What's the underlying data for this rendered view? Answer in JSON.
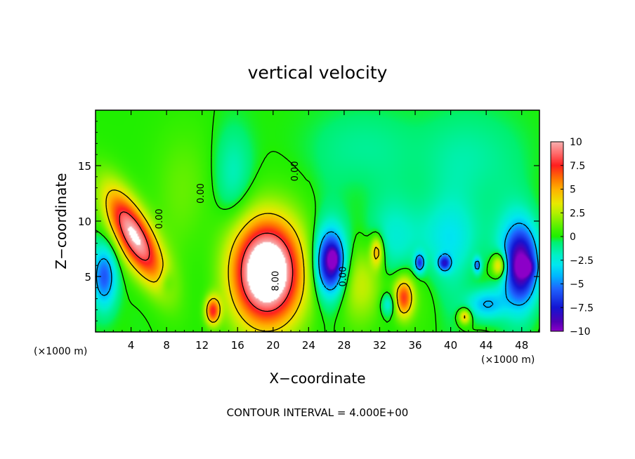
{
  "chart_data": {
    "type": "heatmap",
    "title": "vertical velocity",
    "xlabel": "X−coordinate",
    "ylabel": "Z−coordinate",
    "x_unit_left": "(×1000 m)",
    "x_unit_right": "(×1000 m)",
    "xlim": [
      0,
      50
    ],
    "ylim": [
      0,
      20
    ],
    "x_ticks": [
      "4",
      "8",
      "12",
      "16",
      "20",
      "24",
      "28",
      "32",
      "36",
      "40",
      "44",
      "48"
    ],
    "x_tick_values": [
      4,
      8,
      12,
      16,
      20,
      24,
      28,
      32,
      36,
      40,
      44,
      48
    ],
    "y_ticks": [
      "5",
      "10",
      "15"
    ],
    "y_tick_values": [
      5,
      10,
      15
    ],
    "footer": "CONTOUR INTERVAL = 4.000E+00",
    "colorbar": {
      "range": [
        -10,
        10
      ],
      "labels": [
        "10",
        "7.5",
        "5",
        "2.5",
        "0",
        "−2.5",
        "−5",
        "−7.5",
        "−10"
      ],
      "label_values": [
        10,
        7.5,
        5,
        2.5,
        0,
        -2.5,
        -5,
        -7.5,
        -10
      ],
      "stops": [
        {
          "value": 10,
          "color": "#f6b0b0"
        },
        {
          "value": 8.75,
          "color": "#ff6a6a"
        },
        {
          "value": 7.5,
          "color": "#ff1e1e"
        },
        {
          "value": 6,
          "color": "#ff7a00"
        },
        {
          "value": 5,
          "color": "#ffb000"
        },
        {
          "value": 3.5,
          "color": "#e8e800"
        },
        {
          "value": 2.5,
          "color": "#b4f000"
        },
        {
          "value": 0.6,
          "color": "#3cf000"
        },
        {
          "value": 0,
          "color": "#20ef00"
        },
        {
          "value": -0.6,
          "color": "#00f070"
        },
        {
          "value": -2,
          "color": "#00f0c8"
        },
        {
          "value": -3,
          "color": "#00e6f0"
        },
        {
          "value": -4.2,
          "color": "#00b4ff"
        },
        {
          "value": -5.5,
          "color": "#1e64ff"
        },
        {
          "value": -7.5,
          "color": "#1414d2"
        },
        {
          "value": -9,
          "color": "#5000b4"
        },
        {
          "value": -10,
          "color": "#8c00c8"
        }
      ]
    },
    "contour_labels": [
      {
        "text": "0.00",
        "x": 7.5,
        "y": 10.2
      },
      {
        "text": "0.00",
        "x": 12.2,
        "y": 12.5
      },
      {
        "text": "0.00",
        "x": 22.8,
        "y": 14.5
      },
      {
        "text": "8.00",
        "x": 20.6,
        "y": 4.6
      },
      {
        "text": "0.00",
        "x": 28.2,
        "y": 5.0
      }
    ],
    "features": [
      {
        "x": 4.4,
        "z": 8.6,
        "sx": 1.6,
        "sz": 3.0,
        "tilt": 0.55,
        "amp": 10.5
      },
      {
        "x": 19.3,
        "z": 5.4,
        "sx": 2.7,
        "sz": 3.4,
        "tilt": 0.0,
        "amp": 14.0
      },
      {
        "x": 13.2,
        "z": 1.9,
        "sx": 0.6,
        "sz": 0.9,
        "tilt": 0.0,
        "amp": 7.0
      },
      {
        "x": 31.7,
        "z": 7.3,
        "sx": 0.5,
        "sz": 1.0,
        "tilt": 0.0,
        "amp": 5.0
      },
      {
        "x": 34.7,
        "z": 3.1,
        "sx": 0.8,
        "sz": 1.3,
        "tilt": 0.0,
        "amp": 7.0
      },
      {
        "x": 41.6,
        "z": 1.4,
        "sx": 0.5,
        "sz": 0.5,
        "tilt": 0.0,
        "amp": 5.0
      },
      {
        "x": 45.5,
        "z": 6.0,
        "sx": 0.6,
        "sz": 0.8,
        "tilt": 0.0,
        "amp": 6.0
      },
      {
        "x": 10.0,
        "z": 13.0,
        "sx": 2.5,
        "sz": 4.0,
        "tilt": 0.0,
        "amp": 1.2
      },
      {
        "x": 30.0,
        "z": 4.5,
        "sx": 2.5,
        "sz": 2.5,
        "tilt": 0.0,
        "amp": 2.5
      },
      {
        "x": 26.5,
        "z": 6.2,
        "sx": 1.2,
        "sz": 2.0,
        "tilt": 0.0,
        "amp": -9.5
      },
      {
        "x": 26.8,
        "z": 6.6,
        "sx": 0.4,
        "sz": 0.6,
        "tilt": 0.0,
        "amp": -3.5
      },
      {
        "x": 48.0,
        "z": 6.0,
        "sx": 1.4,
        "sz": 2.5,
        "tilt": 0.0,
        "amp": -9.5
      },
      {
        "x": 48.5,
        "z": 5.8,
        "sx": 0.6,
        "sz": 0.5,
        "tilt": 0.0,
        "amp": -4.0
      },
      {
        "x": 1.0,
        "z": 5.0,
        "sx": 1.0,
        "sz": 2.0,
        "tilt": 0.0,
        "amp": -6.0
      },
      {
        "x": 36.5,
        "z": 6.2,
        "sx": 0.4,
        "sz": 0.6,
        "tilt": 0.0,
        "amp": -6.0
      },
      {
        "x": 39.3,
        "z": 6.2,
        "sx": 0.5,
        "sz": 0.5,
        "tilt": 0.0,
        "amp": -6.0
      },
      {
        "x": 43.0,
        "z": 6.0,
        "sx": 0.3,
        "sz": 0.5,
        "tilt": 0.0,
        "amp": -5.0
      },
      {
        "x": 44.0,
        "z": 2.5,
        "sx": 1.5,
        "sz": 1.0,
        "tilt": 0.0,
        "amp": -4.5
      },
      {
        "x": 33.0,
        "z": 2.5,
        "sx": 0.6,
        "sz": 0.7,
        "tilt": 0.0,
        "amp": -3.0
      },
      {
        "x": 38.0,
        "z": 8.5,
        "sx": 6.0,
        "sz": 2.5,
        "tilt": 0.0,
        "amp": -2.5
      },
      {
        "x": 15.5,
        "z": 14.0,
        "sx": 1.5,
        "sz": 3.0,
        "tilt": 0.0,
        "amp": -2.0
      },
      {
        "x": 8.0,
        "z": 4.5,
        "sx": 0.6,
        "sz": 0.8,
        "tilt": 0.0,
        "amp": -1.5
      },
      {
        "x": 42.0,
        "z": 15.5,
        "sx": 4.0,
        "sz": 3.0,
        "tilt": 0.0,
        "amp": -1.5
      },
      {
        "x": 30.0,
        "z": 16.5,
        "sx": 4.0,
        "sz": 2.5,
        "tilt": 0.0,
        "amp": -1.2
      }
    ]
  }
}
